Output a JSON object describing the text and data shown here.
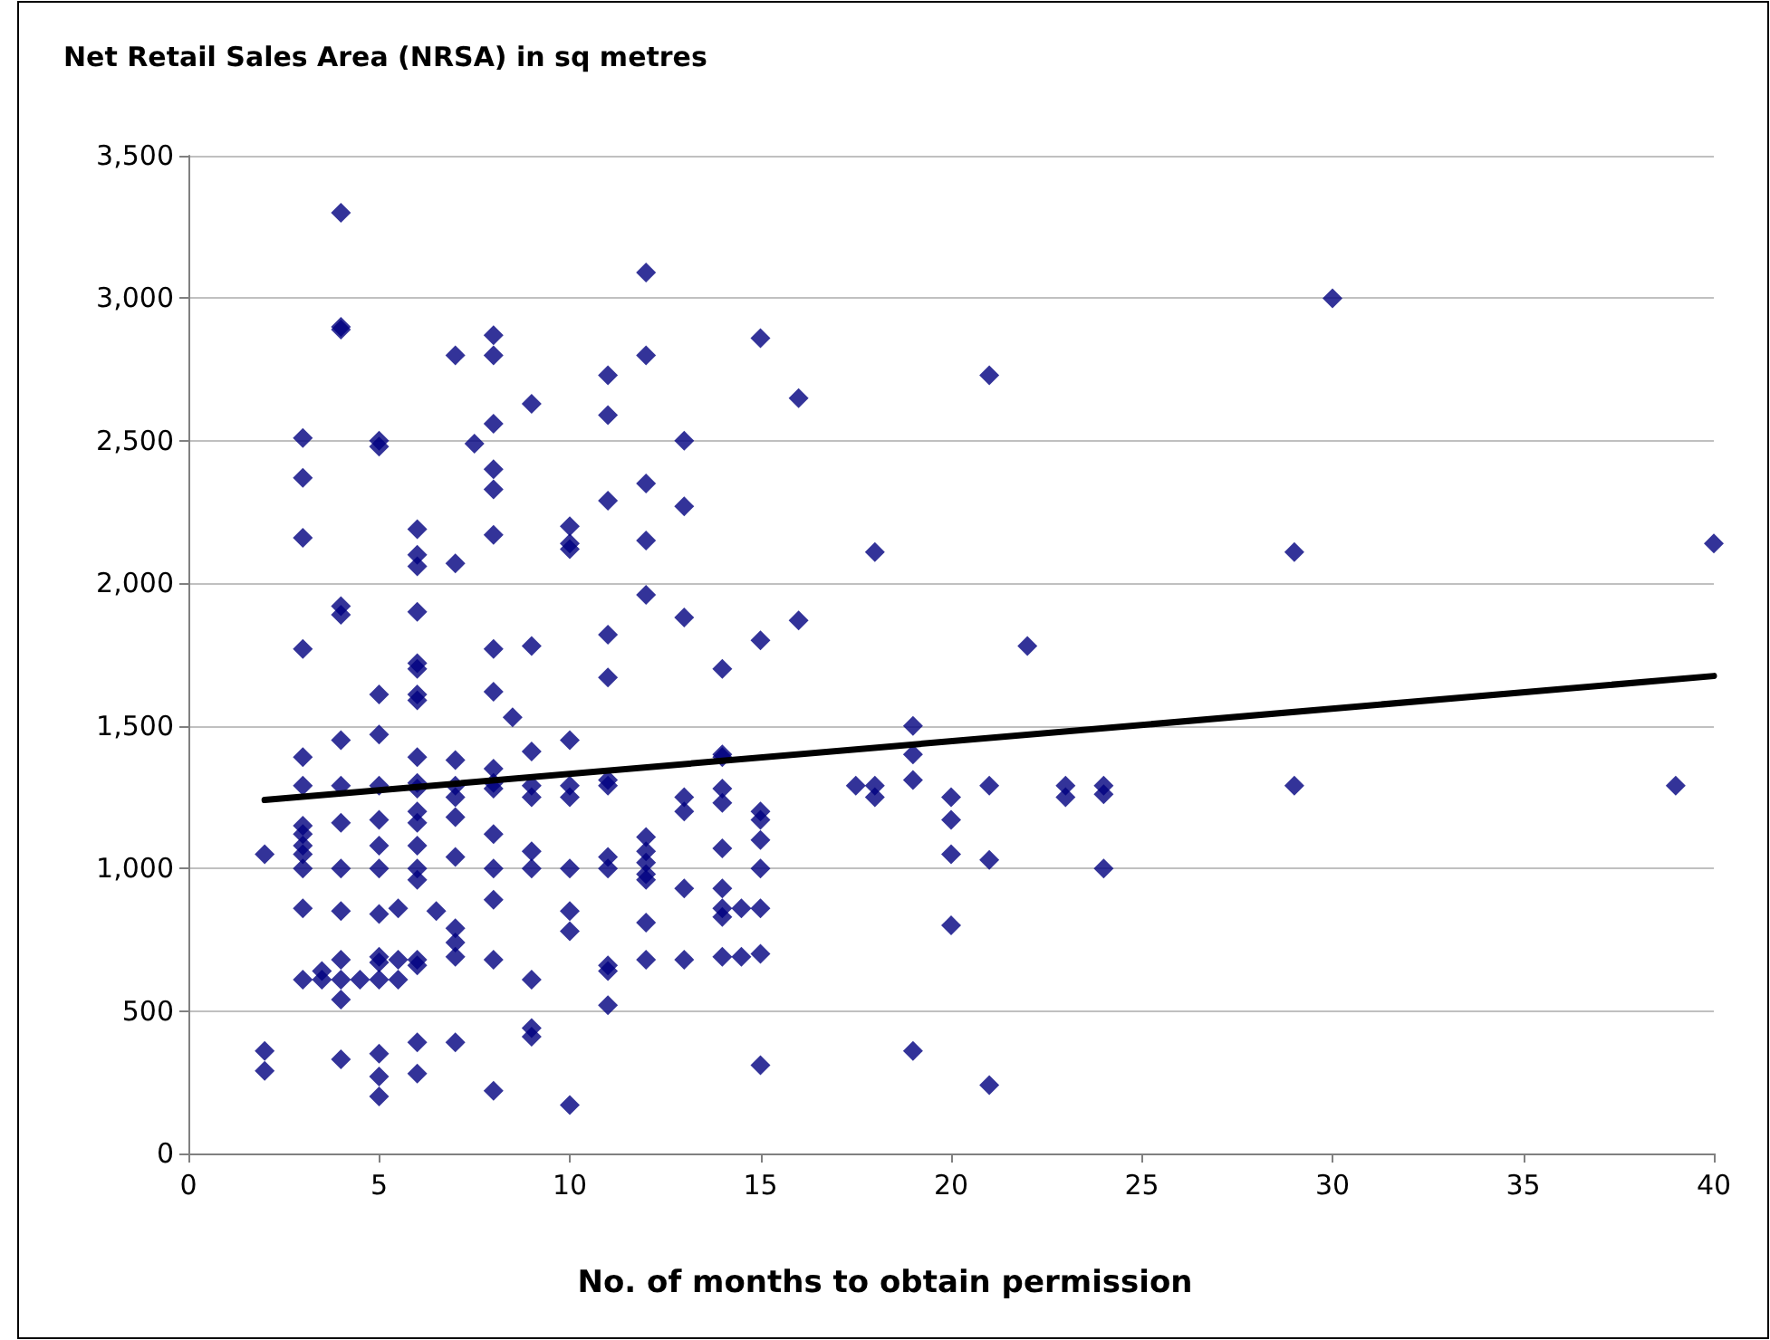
{
  "chart_data": {
    "type": "scatter",
    "ylabel": "Net Retail Sales Area (NRSA) in sq metres",
    "xlabel": "No. of months to obtain permission",
    "xlim": [
      0,
      40
    ],
    "xticks": [
      0,
      5,
      10,
      15,
      20,
      25,
      30,
      35,
      40
    ],
    "ylim": [
      0,
      3500
    ],
    "yticks": [
      0,
      500,
      {
        "value": 1000,
        "label": "1,000"
      },
      {
        "value": 1500,
        "label": "1,500"
      },
      {
        "value": 2000,
        "label": "2,000"
      },
      {
        "value": 2500,
        "label": "2,500"
      },
      {
        "value": 3000,
        "label": "3,000"
      },
      {
        "value": 3500,
        "label": "3,500"
      }
    ],
    "grid": "y",
    "series": [
      {
        "marker": "diamond",
        "color": "#000080",
        "x": [
          2,
          2,
          2,
          3,
          3,
          3,
          3,
          3,
          3,
          3,
          3,
          3,
          3,
          3,
          3,
          3,
          3.5,
          3.5,
          4,
          4,
          4,
          4,
          4,
          4,
          4,
          4,
          4,
          4,
          4,
          4,
          4,
          4,
          4.5,
          5,
          5,
          5,
          5,
          5,
          5,
          5,
          5,
          5,
          5,
          5,
          5,
          5,
          5,
          5,
          5.5,
          5.5,
          5.5,
          6,
          6,
          6,
          6,
          6,
          6,
          6,
          6,
          6,
          6,
          6,
          6,
          6,
          6,
          6,
          6,
          6,
          6,
          6,
          6,
          6.5,
          7,
          7,
          7,
          7,
          7,
          7,
          7,
          7,
          7,
          7,
          7,
          7.5,
          8,
          8,
          8,
          8,
          8,
          8,
          8,
          8,
          8,
          8,
          8,
          8,
          8,
          8,
          8,
          8,
          8.5,
          9,
          9,
          9,
          9,
          9,
          9,
          9,
          9,
          9,
          9,
          10,
          10,
          10,
          10,
          10,
          10,
          10,
          10,
          10,
          10,
          11,
          11,
          11,
          11,
          11,
          11,
          11,
          11,
          11,
          11,
          11,
          11,
          12,
          12,
          12,
          12,
          12,
          12,
          12,
          12,
          12,
          12,
          12,
          12,
          13,
          13,
          13,
          13,
          13,
          13,
          13,
          14,
          14,
          14,
          14,
          14,
          14,
          14,
          14,
          14,
          14,
          14.5,
          14.5,
          15,
          15,
          15,
          15,
          15,
          15,
          15,
          15,
          15,
          16,
          16,
          17.5,
          18,
          18,
          18,
          19,
          19,
          19,
          19,
          20,
          20,
          20,
          20,
          21,
          21,
          21,
          21,
          22,
          23,
          23,
          24,
          24,
          24,
          29,
          29,
          30,
          39,
          40
        ],
        "values": [
          1050,
          360,
          290,
          2510,
          2370,
          2160,
          1770,
          1390,
          1290,
          1150,
          1120,
          1080,
          1050,
          1000,
          860,
          610,
          640,
          610,
          3300,
          2900,
          2890,
          1920,
          1890,
          1450,
          1290,
          1160,
          1000,
          850,
          680,
          610,
          540,
          330,
          610,
          2500,
          2480,
          1610,
          1470,
          1290,
          1170,
          1080,
          1000,
          840,
          690,
          670,
          610,
          350,
          270,
          200,
          860,
          680,
          610,
          2190,
          2100,
          2060,
          1900,
          1720,
          1700,
          1610,
          1590,
          1390,
          1300,
          1280,
          1200,
          1160,
          1080,
          1000,
          960,
          680,
          660,
          390,
          280,
          850,
          2800,
          2070,
          1380,
          1290,
          1250,
          1180,
          1040,
          790,
          740,
          690,
          390,
          2490,
          2870,
          2800,
          2560,
          2400,
          2330,
          2170,
          1770,
          1620,
          1350,
          1300,
          1280,
          1120,
          1000,
          890,
          680,
          220,
          1530,
          2630,
          1780,
          1410,
          1290,
          1250,
          1060,
          1000,
          610,
          440,
          410,
          2200,
          2140,
          2120,
          1450,
          1290,
          1250,
          1000,
          850,
          780,
          170,
          2730,
          2590,
          2290,
          1820,
          1670,
          1310,
          1290,
          1040,
          1000,
          660,
          640,
          520,
          3090,
          2800,
          2350,
          2150,
          1960,
          1110,
          1060,
          1020,
          980,
          960,
          810,
          680,
          2500,
          2270,
          1880,
          1250,
          1200,
          930,
          680,
          1700,
          1400,
          1390,
          1280,
          1230,
          1070,
          930,
          860,
          830,
          690,
          860,
          690,
          2860,
          1800,
          1200,
          1170,
          1100,
          1000,
          860,
          700,
          310,
          2650,
          1870,
          1290,
          2110,
          1290,
          1250,
          1500,
          1400,
          1310,
          360,
          1250,
          1170,
          1050,
          800,
          2730,
          1290,
          1030,
          240,
          1780,
          1290,
          1250,
          1290,
          1260,
          1000,
          2110,
          1290,
          3000,
          1290,
          2140
        ]
      },
      {
        "type": "line",
        "marker": "none",
        "color": "#000000",
        "x": [
          2,
          40
        ],
        "values": [
          1240,
          1675
        ]
      }
    ]
  }
}
